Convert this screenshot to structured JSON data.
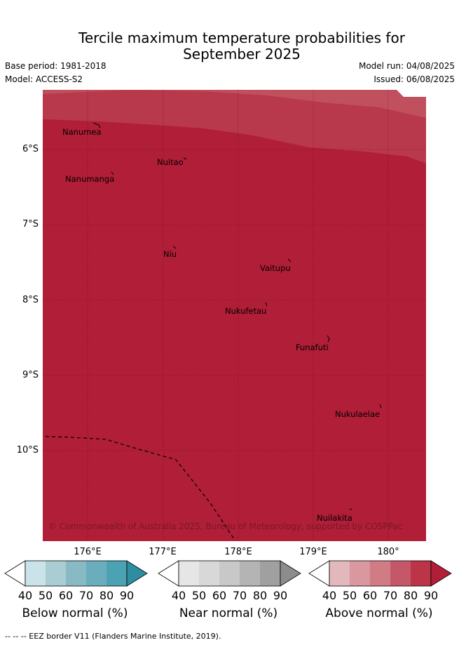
{
  "title": {
    "line1": "Tercile maximum temperature probabilities for",
    "line2": "September 2025"
  },
  "meta": {
    "base_period": "Base period: 1981-2018",
    "model": "Model: ACCESS-S2",
    "model_run": "Model run: 04/08/2025",
    "issued": "Issued: 06/08/2025"
  },
  "map": {
    "latitude_labels": [
      "6°S",
      "7°S",
      "8°S",
      "9°S",
      "10°S"
    ],
    "longitude_labels": [
      "176°E",
      "177°E",
      "178°E",
      "179°E",
      "180°"
    ],
    "places": [
      "Nanumea",
      "Nuitao",
      "Nanumanga",
      "Niu",
      "Vaitupu",
      "Nukufetau",
      "Funafuti",
      "Nukulaelae",
      "Nuilakita"
    ],
    "copyright": "© Commonwealth of Australia 2025, Bureau of Meteorology, supported by COSPPac",
    "fill_colors": [
      "#c96b74",
      "#c0505e",
      "#b8384c",
      "#b01e37"
    ]
  },
  "colorbars": [
    {
      "name": "below",
      "label": "Below normal (%)",
      "ticks": [
        "40",
        "50",
        "60",
        "70",
        "80",
        "90"
      ],
      "colors": [
        "#ffffff",
        "#cae3e9",
        "#a9cdd2",
        "#88b9c4",
        "#6aaebd",
        "#4aa2b2",
        "#2e8da0"
      ]
    },
    {
      "name": "near",
      "label": "Near normal (%)",
      "ticks": [
        "40",
        "50",
        "60",
        "70",
        "80",
        "90"
      ],
      "colors": [
        "#ffffff",
        "#e6e6e6",
        "#d8d8d8",
        "#c8c8c8",
        "#b4b4b4",
        "#a0a0a0",
        "#8c8c8c"
      ]
    },
    {
      "name": "above",
      "label": "Above normal (%)",
      "ticks": [
        "40",
        "50",
        "60",
        "70",
        "80",
        "90"
      ],
      "colors": [
        "#ffffff",
        "#e2b8bd",
        "#d9979f",
        "#d17b85",
        "#c55868",
        "#bb3448",
        "#b01e37"
      ]
    }
  ],
  "footer": "--  --  -- EEZ border V11 (Flanders Marine Institute, 2019)."
}
